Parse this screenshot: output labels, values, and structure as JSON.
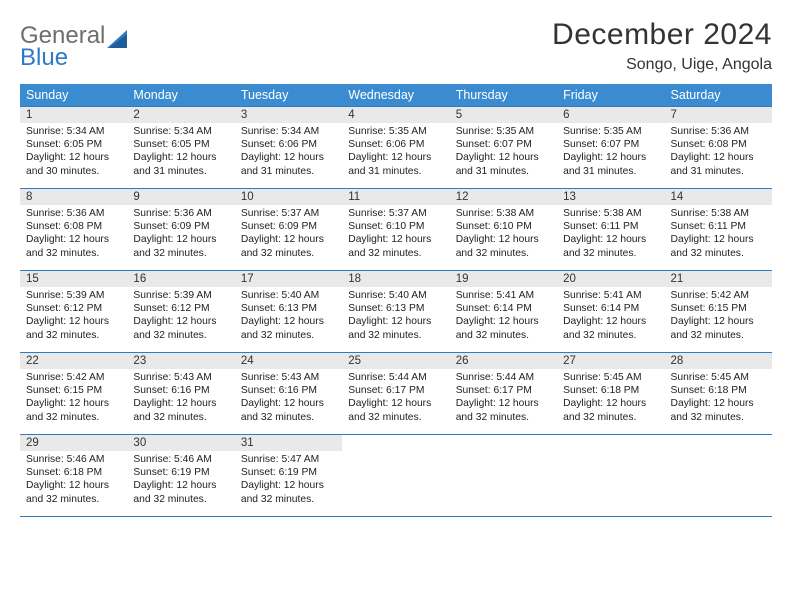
{
  "logo": {
    "general": "General",
    "blue": "Blue"
  },
  "title": "December 2024",
  "location": "Songo, Uige, Angola",
  "colors": {
    "header_bg": "#3b8bd0",
    "header_border": "#2f7ac4",
    "daynum_bg": "#e9e9e9",
    "logo_gray": "#6e6e6e",
    "logo_blue": "#2f7ac4"
  },
  "daysOfWeek": [
    "Sunday",
    "Monday",
    "Tuesday",
    "Wednesday",
    "Thursday",
    "Friday",
    "Saturday"
  ],
  "weeks": [
    [
      {
        "n": "1",
        "sr": "5:34 AM",
        "ss": "6:05 PM",
        "dl": "12 hours and 30 minutes."
      },
      {
        "n": "2",
        "sr": "5:34 AM",
        "ss": "6:05 PM",
        "dl": "12 hours and 31 minutes."
      },
      {
        "n": "3",
        "sr": "5:34 AM",
        "ss": "6:06 PM",
        "dl": "12 hours and 31 minutes."
      },
      {
        "n": "4",
        "sr": "5:35 AM",
        "ss": "6:06 PM",
        "dl": "12 hours and 31 minutes."
      },
      {
        "n": "5",
        "sr": "5:35 AM",
        "ss": "6:07 PM",
        "dl": "12 hours and 31 minutes."
      },
      {
        "n": "6",
        "sr": "5:35 AM",
        "ss": "6:07 PM",
        "dl": "12 hours and 31 minutes."
      },
      {
        "n": "7",
        "sr": "5:36 AM",
        "ss": "6:08 PM",
        "dl": "12 hours and 31 minutes."
      }
    ],
    [
      {
        "n": "8",
        "sr": "5:36 AM",
        "ss": "6:08 PM",
        "dl": "12 hours and 32 minutes."
      },
      {
        "n": "9",
        "sr": "5:36 AM",
        "ss": "6:09 PM",
        "dl": "12 hours and 32 minutes."
      },
      {
        "n": "10",
        "sr": "5:37 AM",
        "ss": "6:09 PM",
        "dl": "12 hours and 32 minutes."
      },
      {
        "n": "11",
        "sr": "5:37 AM",
        "ss": "6:10 PM",
        "dl": "12 hours and 32 minutes."
      },
      {
        "n": "12",
        "sr": "5:38 AM",
        "ss": "6:10 PM",
        "dl": "12 hours and 32 minutes."
      },
      {
        "n": "13",
        "sr": "5:38 AM",
        "ss": "6:11 PM",
        "dl": "12 hours and 32 minutes."
      },
      {
        "n": "14",
        "sr": "5:38 AM",
        "ss": "6:11 PM",
        "dl": "12 hours and 32 minutes."
      }
    ],
    [
      {
        "n": "15",
        "sr": "5:39 AM",
        "ss": "6:12 PM",
        "dl": "12 hours and 32 minutes."
      },
      {
        "n": "16",
        "sr": "5:39 AM",
        "ss": "6:12 PM",
        "dl": "12 hours and 32 minutes."
      },
      {
        "n": "17",
        "sr": "5:40 AM",
        "ss": "6:13 PM",
        "dl": "12 hours and 32 minutes."
      },
      {
        "n": "18",
        "sr": "5:40 AM",
        "ss": "6:13 PM",
        "dl": "12 hours and 32 minutes."
      },
      {
        "n": "19",
        "sr": "5:41 AM",
        "ss": "6:14 PM",
        "dl": "12 hours and 32 minutes."
      },
      {
        "n": "20",
        "sr": "5:41 AM",
        "ss": "6:14 PM",
        "dl": "12 hours and 32 minutes."
      },
      {
        "n": "21",
        "sr": "5:42 AM",
        "ss": "6:15 PM",
        "dl": "12 hours and 32 minutes."
      }
    ],
    [
      {
        "n": "22",
        "sr": "5:42 AM",
        "ss": "6:15 PM",
        "dl": "12 hours and 32 minutes."
      },
      {
        "n": "23",
        "sr": "5:43 AM",
        "ss": "6:16 PM",
        "dl": "12 hours and 32 minutes."
      },
      {
        "n": "24",
        "sr": "5:43 AM",
        "ss": "6:16 PM",
        "dl": "12 hours and 32 minutes."
      },
      {
        "n": "25",
        "sr": "5:44 AM",
        "ss": "6:17 PM",
        "dl": "12 hours and 32 minutes."
      },
      {
        "n": "26",
        "sr": "5:44 AM",
        "ss": "6:17 PM",
        "dl": "12 hours and 32 minutes."
      },
      {
        "n": "27",
        "sr": "5:45 AM",
        "ss": "6:18 PM",
        "dl": "12 hours and 32 minutes."
      },
      {
        "n": "28",
        "sr": "5:45 AM",
        "ss": "6:18 PM",
        "dl": "12 hours and 32 minutes."
      }
    ],
    [
      {
        "n": "29",
        "sr": "5:46 AM",
        "ss": "6:18 PM",
        "dl": "12 hours and 32 minutes."
      },
      {
        "n": "30",
        "sr": "5:46 AM",
        "ss": "6:19 PM",
        "dl": "12 hours and 32 minutes."
      },
      {
        "n": "31",
        "sr": "5:47 AM",
        "ss": "6:19 PM",
        "dl": "12 hours and 32 minutes."
      },
      null,
      null,
      null,
      null
    ]
  ],
  "labels": {
    "sunrise": "Sunrise:",
    "sunset": "Sunset:",
    "daylight": "Daylight:"
  }
}
